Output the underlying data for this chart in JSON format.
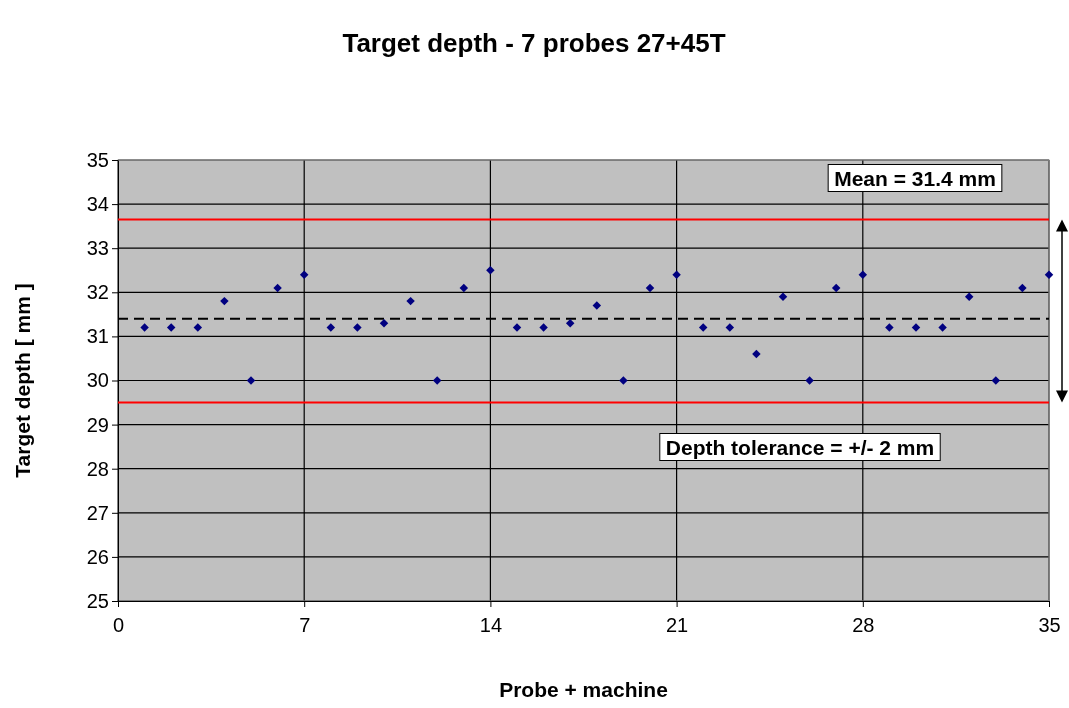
{
  "chart_data": {
    "type": "scatter",
    "title": "Target depth - 7 probes 27+45T",
    "xlabel": "Probe + machine",
    "ylabel": "Target depth [ mm ]",
    "x": [
      1,
      2,
      3,
      4,
      5,
      6,
      7,
      8,
      9,
      10,
      11,
      12,
      13,
      14,
      15,
      16,
      17,
      18,
      19,
      20,
      21,
      22,
      23,
      24,
      25,
      26,
      27,
      28,
      29,
      30,
      31,
      32,
      33,
      34,
      35
    ],
    "series": [
      {
        "color": "#000080",
        "values": [
          31.2,
          31.2,
          31.2,
          31.8,
          30.0,
          32.1,
          32.4,
          31.2,
          31.2,
          31.3,
          31.8,
          30.0,
          32.1,
          32.5,
          31.2,
          31.2,
          31.3,
          31.7,
          30.0,
          32.1,
          32.4,
          31.2,
          31.2,
          30.6,
          31.9,
          30.0,
          32.1,
          32.4,
          31.2,
          31.2,
          31.2,
          31.9,
          30.0,
          32.1,
          32.4
        ]
      }
    ],
    "marker": "diamond",
    "grid": true,
    "xlim": [
      0,
      35
    ],
    "xticks": [
      0,
      7,
      14,
      21,
      28,
      35
    ],
    "ylim": [
      25,
      35
    ],
    "yticks": [
      25,
      26,
      27,
      28,
      29,
      30,
      31,
      32,
      33,
      34,
      35
    ],
    "ref_lines": [
      {
        "axis": "y",
        "value": 31.4,
        "label": "Mean = 31.4 mm",
        "color": "#000000",
        "line_style": "dashed"
      },
      {
        "axis": "y",
        "value": 33.65,
        "color": "#ff0000",
        "line_style": "solid"
      },
      {
        "axis": "y",
        "value": 29.5,
        "color": "#ff0000",
        "line_style": "solid"
      }
    ],
    "annotations": [
      "Depth tolerance = +/- 2 mm"
    ]
  }
}
